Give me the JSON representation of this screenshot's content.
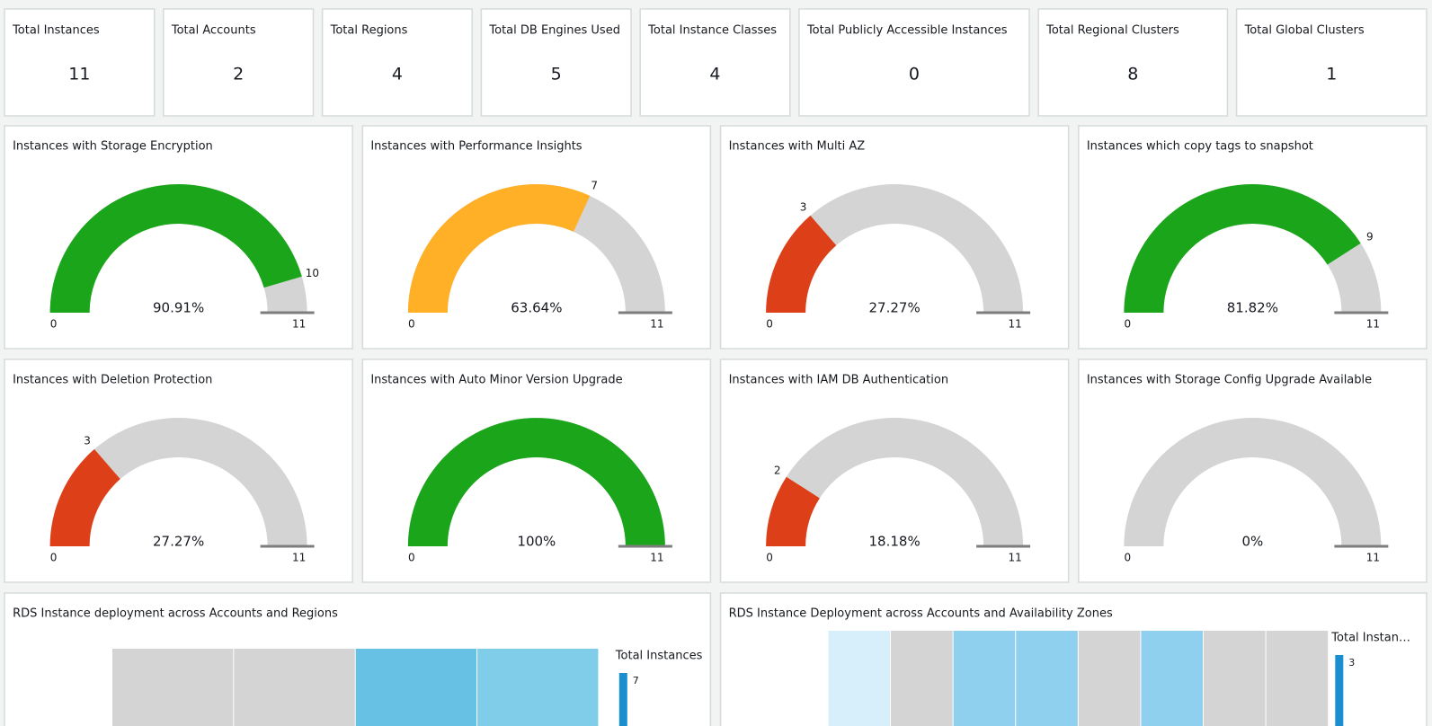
{
  "kpis": [
    {
      "label": "Total Instances",
      "value": 11
    },
    {
      "label": "Total Accounts",
      "value": 2
    },
    {
      "label": "Total Regions",
      "value": 4
    },
    {
      "label": "Total DB Engines Used",
      "value": 5
    },
    {
      "label": "Total Instance Classes",
      "value": 4
    },
    {
      "label": "Total Publicly Accessible Instances",
      "value": 0
    },
    {
      "label": "Total Regional Clusters",
      "value": 8
    },
    {
      "label": "Total Global Clusters",
      "value": 1
    }
  ],
  "gauges": [
    {
      "title": "Instances with Storage Encryption",
      "value": 10,
      "min": 0,
      "max": 11,
      "percent": {
        "value": 90.91,
        "label": "90.91%"
      },
      "color": "#1aa51a"
    },
    {
      "title": "Instances with Performance Insights",
      "value": 7,
      "min": 0,
      "max": 11,
      "percent": {
        "value": 63.64,
        "label": "63.64%"
      },
      "color": "#ffb027"
    },
    {
      "title": "Instances with Multi AZ",
      "value": 3,
      "min": 0,
      "max": 11,
      "percent": {
        "value": 27.27,
        "label": "27.27%"
      },
      "color": "#dd4018"
    },
    {
      "title": "Instances which copy tags to snapshot",
      "value": 9,
      "min": 0,
      "max": 11,
      "percent": {
        "value": 81.82,
        "label": "81.82%"
      },
      "color": "#1aa51a"
    },
    {
      "title": "Instances with Deletion Protection",
      "value": 3,
      "min": 0,
      "max": 11,
      "percent": {
        "value": 27.27,
        "label": "27.27%"
      },
      "color": "#dd4018"
    },
    {
      "title": "Instances with Auto Minor Version Upgrade",
      "value": 11,
      "min": 0,
      "max": 11,
      "percent": {
        "value": 100,
        "label": "100%"
      },
      "color": "#1aa51a"
    },
    {
      "title": "Instances with IAM DB Authentication",
      "value": 2,
      "min": 0,
      "max": 11,
      "percent": {
        "value": 18.18,
        "label": "18.18%"
      },
      "color": "#dd4018"
    },
    {
      "title": "Instances with Storage Config Upgrade Available",
      "value": 0,
      "min": 0,
      "max": 11,
      "percent": {
        "value": 0,
        "label": "0%"
      },
      "color": "#dd4018"
    }
  ],
  "panels": [
    {
      "title": "RDS Instance deployment across Accounts and Regions",
      "legend_title": "Total Instances",
      "legend_max": 7,
      "cell_colors": [
        "#d4d4d4",
        "#d4d4d4",
        "#66c1e4",
        "#7fcde8"
      ]
    },
    {
      "title": "RDS Instance Deployment across Accounts and Availability Zones",
      "legend_title": "Total Instan…",
      "legend_max": 3,
      "cell_colors": [
        "#d7effa",
        "#d4d4d4",
        "#90d0ef",
        "#90d0ef",
        "#d4d4d4",
        "#90d0ef",
        "#d4d4d4",
        "#d4d4d4"
      ]
    }
  ]
}
